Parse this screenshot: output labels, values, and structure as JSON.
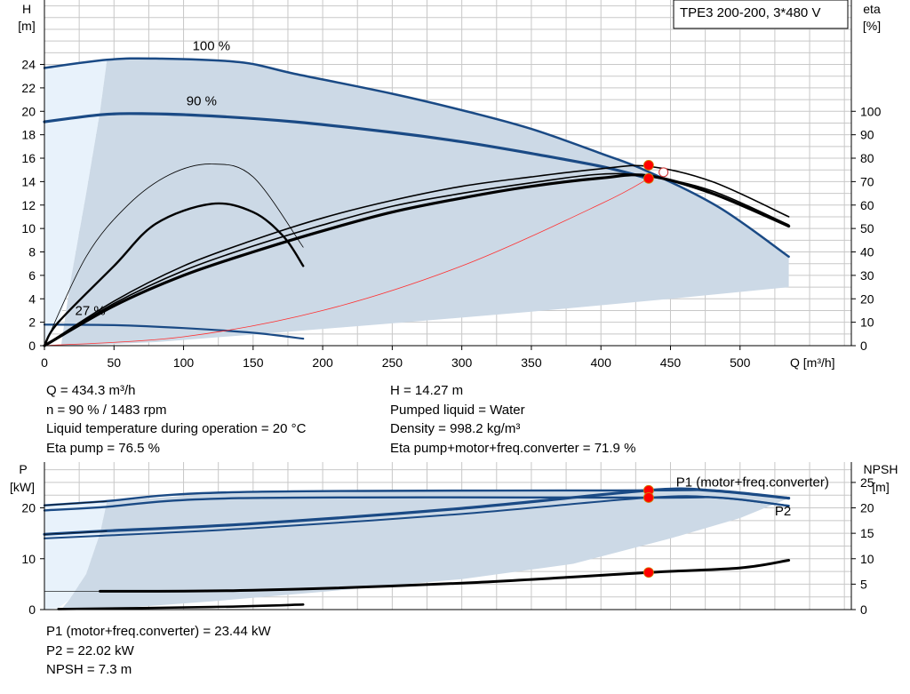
{
  "colors": {
    "curve_blue": "#1a4a85",
    "area_fill": "#ccd9e6",
    "area_light": "#e8f2fb",
    "grid": "#c8c8c8",
    "point_red": "#ff0000",
    "system_curve": "#ff3030",
    "p1_label": "#1a4a85"
  },
  "chart_data": [
    {
      "type": "line",
      "title": "TPE3 200-200, 3*480 V",
      "xlabel": "Q [m³/h]",
      "ylabel_left": [
        "H",
        "[m]"
      ],
      "ylabel_right": [
        "eta",
        "[%]"
      ],
      "xlim": [
        0,
        580
      ],
      "ylim_left": [
        0,
        29.5
      ],
      "ylim_right": [
        0,
        147.5
      ],
      "xticks": [
        0,
        50,
        100,
        150,
        200,
        250,
        300,
        350,
        400,
        450,
        500
      ],
      "yticks_left": [
        0,
        2,
        4,
        6,
        8,
        10,
        12,
        14,
        16,
        18,
        20,
        22,
        24
      ],
      "yticks_right": [
        0,
        10,
        20,
        30,
        40,
        50,
        60,
        70,
        80,
        90,
        100
      ],
      "grid": true,
      "curve_labels": [
        {
          "text": "100 %",
          "x": 120,
          "y": 25.2
        },
        {
          "text": "90 %",
          "x": 113,
          "y": 20.5
        },
        {
          "text": "27 %",
          "x": 33,
          "y": 2.6
        }
      ],
      "series": [
        {
          "role": "head",
          "axis": "left",
          "x": [
            0,
            45,
            80,
            140,
            180,
            250,
            300,
            350,
            400,
            433,
            485,
            535
          ],
          "y": [
            23.7,
            24.4,
            24.5,
            24.2,
            23.2,
            21.5,
            20.1,
            18.5,
            16.4,
            14.9,
            11.8,
            7.6
          ]
        },
        {
          "role": "head",
          "axis": "left",
          "x": [
            0,
            40,
            70,
            120,
            180,
            250,
            300,
            350,
            400,
            434.3
          ],
          "y": [
            19.1,
            19.7,
            19.8,
            19.6,
            19.1,
            18.2,
            17.4,
            16.4,
            15.3,
            14.27
          ]
        },
        {
          "role": "head",
          "axis": "left",
          "x": [
            0,
            50,
            100,
            150,
            186
          ],
          "y": [
            1.8,
            1.75,
            1.5,
            1.1,
            0.6
          ]
        },
        {
          "role": "efficiency",
          "axis": "right",
          "x": [
            0,
            50,
            100,
            150,
            200,
            250,
            300,
            350,
            400,
            434.3,
            480,
            535
          ],
          "y": [
            0,
            17,
            30,
            40,
            49,
            57,
            63,
            68,
            71.5,
            72.5,
            65,
            51
          ]
        },
        {
          "role": "efficiency",
          "axis": "right",
          "x": [
            0,
            50,
            100,
            150,
            200,
            250,
            300,
            350,
            400,
            434.3,
            480,
            535
          ],
          "y": [
            0,
            18,
            32,
            42.5,
            51.5,
            59.5,
            65,
            69.5,
            73.2,
            72.2,
            66,
            51.5
          ]
        },
        {
          "role": "efficiency",
          "axis": "right",
          "x": [
            0,
            50,
            100,
            150,
            200,
            250,
            300,
            350,
            400,
            434.3,
            480,
            535
          ],
          "y": [
            0,
            19,
            34,
            45,
            54.5,
            62,
            68,
            72,
            75.5,
            76.5,
            70,
            55
          ]
        },
        {
          "role": "efficiency",
          "axis": "right",
          "x": [
            0,
            10,
            50,
            80,
            120,
            150,
            172,
            186
          ],
          "y": [
            0,
            10,
            34,
            52,
            60.5,
            57,
            46.5,
            34
          ]
        },
        {
          "role": "efficiency",
          "axis": "right",
          "x": [
            0,
            30,
            60,
            90,
            120,
            150,
            186
          ],
          "y": [
            0,
            38,
            60,
            73,
            77.5,
            72,
            42
          ]
        },
        {
          "role": "system",
          "axis": "left",
          "x": [
            0,
            100,
            200,
            300,
            400,
            434.3
          ],
          "y": [
            0,
            0.76,
            3.0,
            6.8,
            12.1,
            14.27
          ]
        }
      ],
      "duty_points": [
        {
          "x": 434.3,
          "y": 14.27,
          "axis": "left"
        },
        {
          "x": 434.3,
          "y": 15.4,
          "axis": "left"
        },
        {
          "x": 445,
          "y": 74,
          "axis": "right",
          "hollow": true
        }
      ]
    },
    {
      "type": "line",
      "xlabel": "",
      "ylabel_left": [
        "P",
        "[kW]"
      ],
      "ylabel_right": [
        "NPSH",
        "[m]"
      ],
      "xlim": [
        0,
        580
      ],
      "ylim_left": [
        0,
        29
      ],
      "ylim_right": [
        0,
        29
      ],
      "yticks_left": [
        0,
        10,
        20
      ],
      "yticks_right": [
        0,
        5,
        10,
        15,
        20,
        25
      ],
      "grid": true,
      "series_labels": [
        {
          "text": "P1 (motor+freq.converter)",
          "x": 454,
          "y": 24.2
        },
        {
          "text": "P2",
          "x": 525,
          "y": 18.5
        }
      ],
      "series": [
        {
          "role": "P1",
          "x": [
            0,
            40,
            140,
            434.3,
            480,
            535
          ],
          "y": [
            20.5,
            21.2,
            23.1,
            23.44,
            23.4,
            21.9
          ]
        },
        {
          "role": "P2",
          "x": [
            0,
            40,
            140,
            434.3,
            485,
            535
          ],
          "y": [
            19.5,
            20.1,
            21.9,
            22.02,
            22.0,
            20.4
          ]
        },
        {
          "role": "P1",
          "x": [
            0,
            40,
            150,
            300,
            434.3,
            480,
            535
          ],
          "y": [
            14.8,
            15.4,
            16.9,
            19.9,
            23.44,
            23.4,
            21.9
          ]
        },
        {
          "role": "P2",
          "x": [
            0,
            40,
            150,
            300,
            434.3,
            485,
            535
          ],
          "y": [
            14.0,
            14.5,
            16.0,
            18.8,
            22.02,
            22.0,
            20.4
          ]
        },
        {
          "role": "NPSH",
          "x": [
            40,
            150,
            300,
            434.3,
            500,
            535
          ],
          "y": [
            3.6,
            3.8,
            5.2,
            7.3,
            8.2,
            9.7
          ]
        },
        {
          "role": "NPSH",
          "x": [
            10,
            120,
            186
          ],
          "y": [
            0.1,
            0.5,
            1.0
          ]
        }
      ],
      "duty_points": [
        {
          "x": 434.3,
          "y": 23.44
        },
        {
          "x": 434.3,
          "y": 22.02
        },
        {
          "x": 434.3,
          "y": 7.3
        }
      ]
    }
  ],
  "info_top_left": [
    "Q = 434.3 m³/h",
    "n = 90 % / 1483 rpm",
    "Liquid temperature during operation = 20 °C",
    "Eta pump = 76.5 %"
  ],
  "info_top_right": [
    "H = 14.27 m",
    "Pumped liquid = Water",
    "Density = 998.2 kg/m³",
    "Eta pump+motor+freq.converter = 71.9 %"
  ],
  "info_bottom": [
    "P1 (motor+freq.converter) = 23.44 kW",
    "P2 = 22.02 kW",
    "NPSH = 7.3 m"
  ]
}
